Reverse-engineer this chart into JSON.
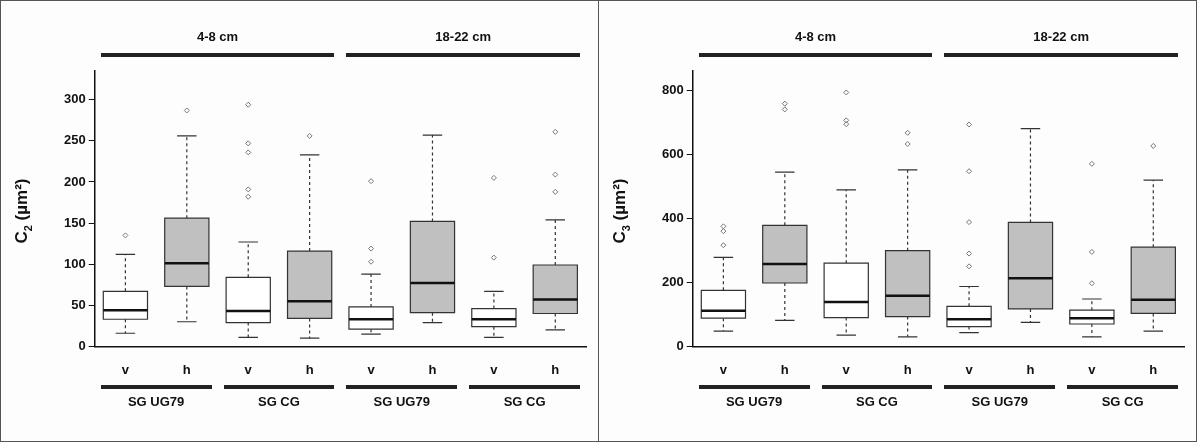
{
  "chart_data": [
    {
      "type": "box",
      "ylabel": "C$_{2}$ (µm²)",
      "categories": [
        "v",
        "h",
        "v",
        "h",
        "v",
        "h",
        "v",
        "h"
      ],
      "colors": [
        "#ffffff",
        "#c0c0c0",
        "#ffffff",
        "#c0c0c0",
        "#ffffff",
        "#c0c0c0",
        "#ffffff",
        "#c0c0c0"
      ],
      "boxes": [
        {
          "low": 16,
          "q1": 33,
          "median": 44,
          "q3": 67,
          "high": 112,
          "outliers": [
            135
          ]
        },
        {
          "low": 30,
          "q1": 73,
          "median": 101,
          "q3": 156,
          "high": 256,
          "outliers": [
            287
          ]
        },
        {
          "low": 11,
          "q1": 29,
          "median": 43,
          "q3": 84,
          "high": 127,
          "outliers": [
            182,
            191,
            236,
            247,
            294
          ]
        },
        {
          "low": 10,
          "q1": 34,
          "median": 55,
          "q3": 116,
          "high": 233,
          "outliers": [
            256
          ]
        },
        {
          "low": 15,
          "q1": 21,
          "median": 33,
          "q3": 48,
          "high": 88,
          "outliers": [
            103,
            119,
            201
          ]
        },
        {
          "low": 29,
          "q1": 41,
          "median": 77,
          "q3": 152,
          "high": 257
        },
        {
          "low": 11,
          "q1": 24,
          "median": 33,
          "q3": 46,
          "high": 67,
          "outliers": [
            108,
            205
          ]
        },
        {
          "low": 20,
          "q1": 40,
          "median": 57,
          "q3": 99,
          "high": 154,
          "outliers": [
            188,
            209,
            261
          ]
        }
      ],
      "ylim": [
        0,
        335
      ],
      "yticks": [
        0,
        50,
        100,
        150,
        200,
        250,
        300
      ],
      "annotations": [
        "4-8 cm",
        "18-22 cm",
        "SG UG79",
        "SG CG",
        "SG UG79",
        "SG CG"
      ]
    },
    {
      "type": "box",
      "ylabel": "C$_{3}$ (µm²)",
      "categories": [
        "v",
        "h",
        "v",
        "h",
        "v",
        "h",
        "v",
        "h"
      ],
      "colors": [
        "#ffffff",
        "#c0c0c0",
        "#ffffff",
        "#c0c0c0",
        "#ffffff",
        "#c0c0c0",
        "#ffffff",
        "#c0c0c0"
      ],
      "boxes": [
        {
          "low": 48,
          "q1": 88,
          "median": 111,
          "q3": 175,
          "high": 278,
          "outliers": [
            316,
            360,
            375
          ]
        },
        {
          "low": 81,
          "q1": 198,
          "median": 257,
          "q3": 378,
          "high": 544,
          "outliers": [
            740,
            758
          ]
        },
        {
          "low": 35,
          "q1": 90,
          "median": 139,
          "q3": 260,
          "high": 489,
          "outliers": [
            694,
            706,
            793
          ]
        },
        {
          "low": 30,
          "q1": 93,
          "median": 158,
          "q3": 299,
          "high": 551,
          "outliers": [
            632,
            667
          ]
        },
        {
          "low": 43,
          "q1": 62,
          "median": 85,
          "q3": 125,
          "high": 187,
          "outliers": [
            250,
            290,
            388,
            547,
            693
          ]
        },
        {
          "low": 75,
          "q1": 117,
          "median": 213,
          "q3": 387,
          "high": 680
        },
        {
          "low": 30,
          "q1": 70,
          "median": 88,
          "q3": 113,
          "high": 148,
          "outliers": [
            197,
            295,
            570
          ]
        },
        {
          "low": 48,
          "q1": 103,
          "median": 146,
          "q3": 310,
          "high": 519,
          "outliers": [
            626
          ]
        }
      ],
      "ylim": [
        0,
        860
      ],
      "yticks": [
        0,
        200,
        400,
        600,
        800
      ],
      "annotations": [
        "4-8 cm",
        "18-22 cm",
        "SG UG79",
        "SG CG",
        "SG UG79",
        "SG CG"
      ]
    }
  ]
}
